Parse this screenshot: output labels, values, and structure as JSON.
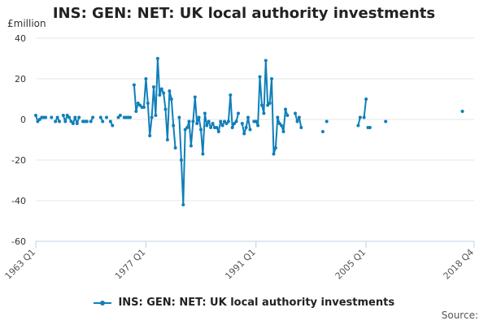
{
  "chart_data": {
    "type": "line",
    "title": "INS: GEN: NET: UK local authority investments",
    "unit_label": "£million",
    "source_label": "Source:",
    "xlabel": "",
    "ylabel": "",
    "ylim": [
      -60,
      40
    ],
    "y_ticks": [
      40,
      20,
      0,
      -20,
      -40,
      -60
    ],
    "x_ticks": [
      "1963 Q1",
      "1977 Q1",
      "1991 Q1",
      "2005 Q1",
      "2018 Q4"
    ],
    "x_range": [
      "1963 Q1",
      "2018 Q4"
    ],
    "grid": "horizontal",
    "legend_position": "bottom",
    "color": "#0f7fb9",
    "series": [
      {
        "name": "INS: GEN: NET: UK local authority investments",
        "segments": [
          [
            [
              "1963 Q1",
              2
            ],
            [
              "1963 Q2",
              -1
            ],
            [
              "1963 Q3",
              0
            ],
            [
              "1963 Q4",
              1
            ],
            [
              "1964 Q1",
              1
            ],
            [
              "1964 Q2",
              1
            ]
          ],
          [
            [
              "1965 Q1",
              1
            ]
          ],
          [
            [
              "1965 Q3",
              -1
            ],
            [
              "1965 Q4",
              1
            ],
            [
              "1966 Q1",
              -1
            ]
          ],
          [
            [
              "1966 Q3",
              2
            ],
            [
              "1966 Q4",
              -1
            ],
            [
              "1967 Q1",
              2
            ],
            [
              "1967 Q2",
              1
            ],
            [
              "1967 Q3",
              -1
            ],
            [
              "1967 Q4",
              -2
            ],
            [
              "1968 Q1",
              1
            ],
            [
              "1968 Q2",
              -2
            ],
            [
              "1968 Q3",
              1
            ]
          ],
          [
            [
              "1969 Q1",
              -1
            ],
            [
              "1969 Q2",
              -1
            ],
            [
              "1969 Q3",
              -1
            ]
          ],
          [
            [
              "1970 Q1",
              -1
            ],
            [
              "1970 Q2",
              1
            ]
          ],
          [
            [
              "1971 Q2",
              1
            ],
            [
              "1971 Q3",
              -1
            ]
          ],
          [
            [
              "1972 Q1",
              1
            ]
          ],
          [
            [
              "1972 Q3",
              -1
            ],
            [
              "1972 Q4",
              -3
            ]
          ],
          [
            [
              "1973 Q3",
              1
            ],
            [
              "1973 Q4",
              2
            ]
          ],
          [
            [
              "1974 Q2",
              1
            ],
            [
              "1974 Q3",
              1
            ],
            [
              "1974 Q4",
              1
            ],
            [
              "1975 Q1",
              1
            ]
          ],
          [
            [
              "1975 Q3",
              17
            ],
            [
              "1975 Q4",
              4
            ],
            [
              "1976 Q1",
              8
            ],
            [
              "1976 Q2",
              7
            ],
            [
              "1976 Q3",
              6
            ],
            [
              "1976 Q4",
              6
            ],
            [
              "1977 Q1",
              20
            ],
            [
              "1977 Q2",
              8
            ],
            [
              "1977 Q3",
              -8
            ],
            [
              "1977 Q4",
              1
            ],
            [
              "1978 Q1",
              16
            ],
            [
              "1978 Q2",
              2
            ],
            [
              "1978 Q3",
              30
            ],
            [
              "1978 Q4",
              12
            ],
            [
              "1979 Q1",
              15
            ],
            [
              "1979 Q2",
              13
            ],
            [
              "1979 Q3",
              5
            ],
            [
              "1979 Q4",
              -10
            ],
            [
              "1980 Q1",
              14
            ],
            [
              "1980 Q2",
              10
            ],
            [
              "1980 Q3",
              -3
            ],
            [
              "1980 Q4",
              -14
            ]
          ],
          [
            [
              "1981 Q2",
              1
            ],
            [
              "1981 Q3",
              -20
            ],
            [
              "1981 Q4",
              -42
            ],
            [
              "1982 Q1",
              -5
            ],
            [
              "1982 Q2",
              -4
            ],
            [
              "1982 Q3",
              -1
            ],
            [
              "1982 Q4",
              -13
            ],
            [
              "1983 Q1",
              -1
            ],
            [
              "1983 Q2",
              11
            ],
            [
              "1983 Q3",
              -2
            ],
            [
              "1983 Q4",
              1
            ],
            [
              "1984 Q1",
              -5
            ],
            [
              "1984 Q2",
              -17
            ],
            [
              "1984 Q3",
              3
            ],
            [
              "1984 Q4",
              -3
            ],
            [
              "1985 Q1",
              -1
            ],
            [
              "1985 Q2",
              -4
            ],
            [
              "1985 Q3",
              -2
            ],
            [
              "1985 Q4",
              -4
            ],
            [
              "1986 Q1",
              -4
            ],
            [
              "1986 Q2",
              -6
            ],
            [
              "1986 Q3",
              -1
            ],
            [
              "1986 Q4",
              -3
            ],
            [
              "1987 Q1",
              -1
            ],
            [
              "1987 Q2",
              -2
            ],
            [
              "1987 Q3",
              -1
            ],
            [
              "1987 Q4",
              12
            ],
            [
              "1988 Q1",
              -4
            ],
            [
              "1988 Q2",
              -2
            ],
            [
              "1988 Q3",
              -1
            ],
            [
              "1988 Q4",
              3
            ]
          ],
          [
            [
              "1989 Q2",
              -2
            ],
            [
              "1989 Q3",
              -7
            ],
            [
              "1989 Q4",
              -4
            ],
            [
              "1990 Q1",
              1
            ],
            [
              "1990 Q2",
              -5
            ]
          ],
          [
            [
              "1990 Q4",
              -1
            ],
            [
              "1991 Q1",
              -1
            ],
            [
              "1991 Q2",
              -3
            ],
            [
              "1991 Q3",
              21
            ],
            [
              "1991 Q4",
              7
            ],
            [
              "1992 Q1",
              3
            ],
            [
              "1992 Q2",
              29
            ],
            [
              "1992 Q3",
              7
            ],
            [
              "1992 Q4",
              8
            ],
            [
              "1993 Q1",
              20
            ],
            [
              "1993 Q2",
              -17
            ],
            [
              "1993 Q3",
              -14
            ],
            [
              "1993 Q4",
              1
            ],
            [
              "1994 Q1",
              -2
            ],
            [
              "1994 Q2",
              -3
            ],
            [
              "1994 Q3",
              -6
            ],
            [
              "1994 Q4",
              5
            ],
            [
              "1995 Q1",
              2
            ]
          ],
          [
            [
              "1996 Q1",
              3
            ],
            [
              "1996 Q2",
              -1
            ],
            [
              "1996 Q3",
              1
            ],
            [
              "1996 Q4",
              -4
            ]
          ],
          [
            [
              "1999 Q3",
              -6
            ]
          ],
          [
            [
              "2000 Q1",
              -1
            ]
          ],
          [
            [
              "2004 Q1",
              -3
            ],
            [
              "2004 Q2",
              1
            ]
          ],
          [
            [
              "2004 Q4",
              1
            ],
            [
              "2005 Q1",
              10
            ]
          ],
          [
            [
              "2005 Q2",
              -4
            ],
            [
              "2005 Q3",
              -4
            ]
          ],
          [
            [
              "2007 Q3",
              -1
            ]
          ],
          [
            [
              "2017 Q2",
              4
            ]
          ]
        ]
      }
    ]
  }
}
